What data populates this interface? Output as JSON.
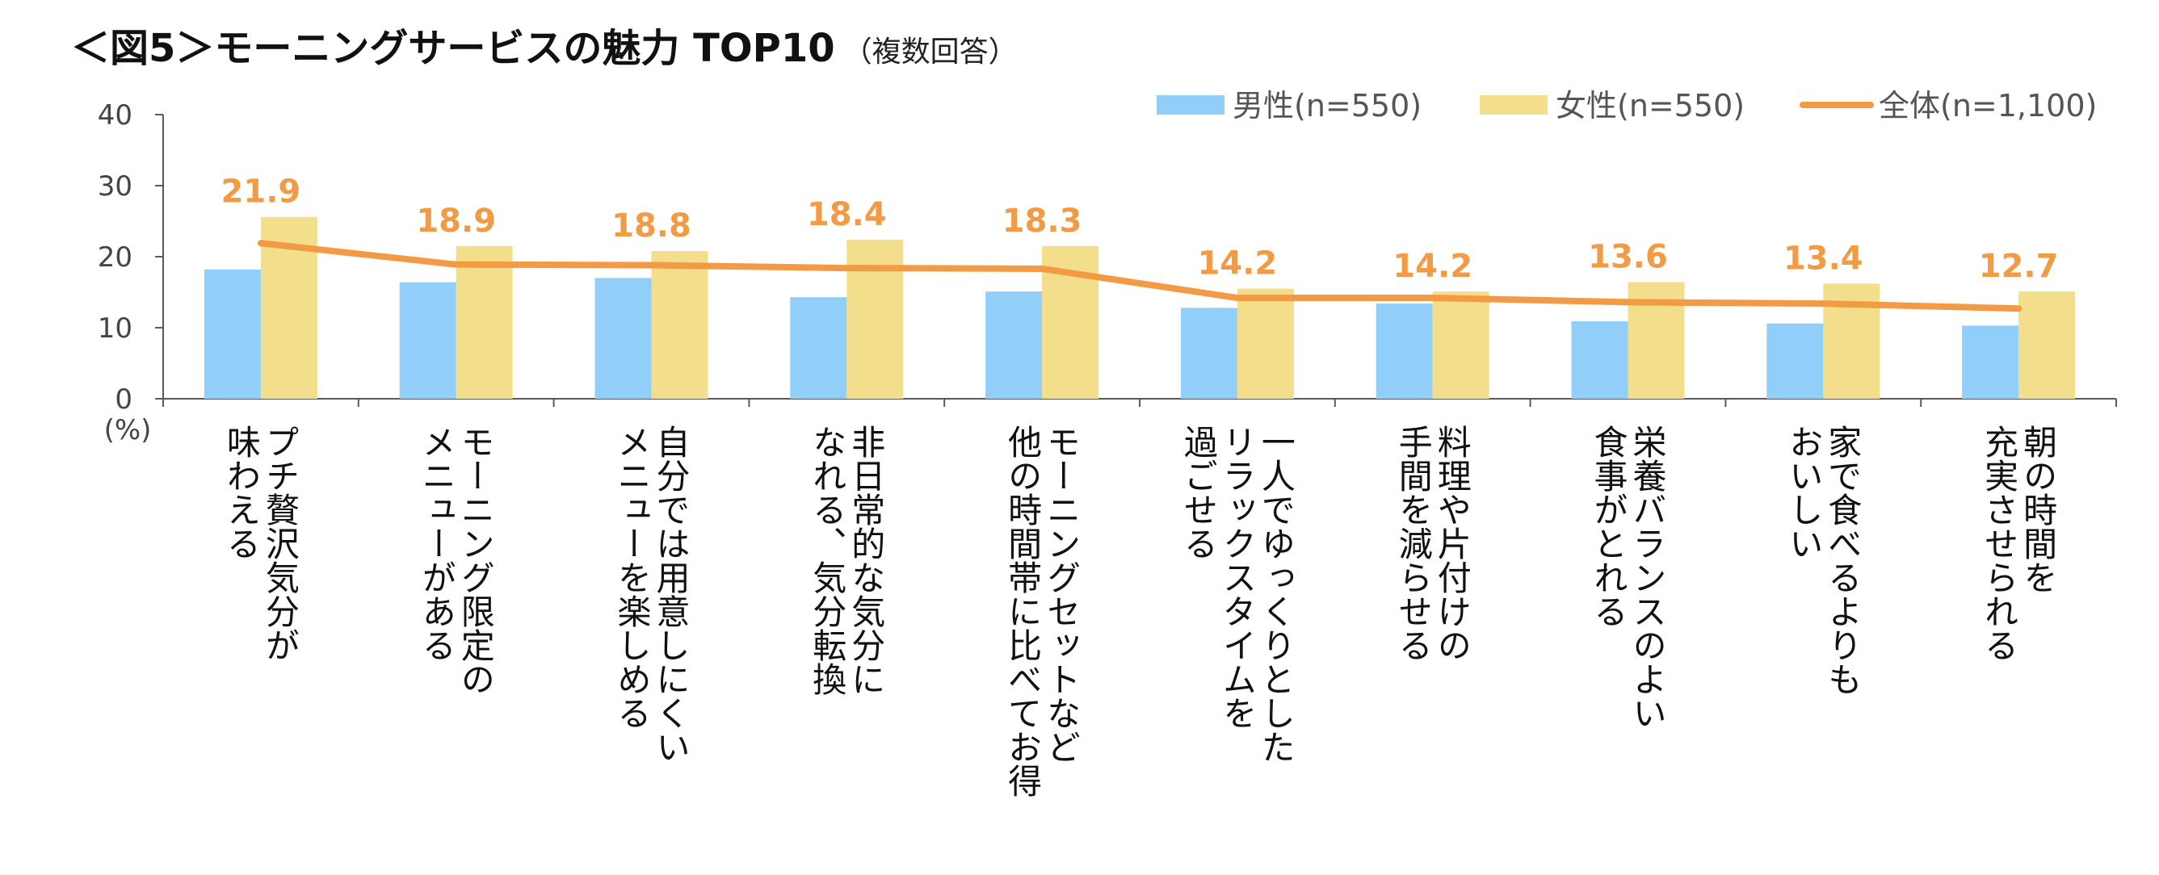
{
  "title": {
    "main": "＜図5＞モーニングサービスの魅力 TOP10",
    "note": "（複数回答）"
  },
  "colors": {
    "male": "#91CFFA",
    "female": "#F2DE8B",
    "total": "#F39A45",
    "axis": "#595959"
  },
  "chart_data": {
    "type": "bar",
    "title": "＜図5＞モーニングサービスの魅力 TOP10",
    "subtitle": "（複数回答）",
    "ylabel": "(%)",
    "ylim": [
      0,
      40
    ],
    "yticks": [
      0,
      10,
      20,
      30,
      40
    ],
    "grid": false,
    "legend_position": "top-right",
    "categories": [
      [
        "プチ贅沢気分が",
        "味わえる"
      ],
      [
        "モーニング限定の",
        "メニューがある"
      ],
      [
        "自分では用意しにくい",
        "メニューを楽しめる"
      ],
      [
        "非日常的な気分に",
        "なれる、気分転換"
      ],
      [
        "モーニングセットなど",
        "他の時間帯に比べてお得"
      ],
      [
        "一人でゆっくりとした",
        "リラックスタイムを",
        "過ごせる"
      ],
      [
        "料理や片付けの",
        "手間を減らせる"
      ],
      [
        "栄養バランスのよい",
        "食事がとれる"
      ],
      [
        "家で食べるよりも",
        "おいしい"
      ],
      [
        "朝の時間を",
        "充実させられる"
      ]
    ],
    "series": [
      {
        "name": "男性(n=550)",
        "type": "bar",
        "values": [
          18.2,
          16.4,
          17.0,
          14.3,
          15.1,
          12.8,
          13.4,
          10.9,
          10.6,
          10.3
        ]
      },
      {
        "name": "女性(n=550)",
        "type": "bar",
        "values": [
          25.6,
          21.5,
          20.8,
          22.4,
          21.5,
          15.5,
          15.1,
          16.4,
          16.2,
          15.1
        ]
      },
      {
        "name": "全体(n=1,100)",
        "type": "line",
        "values": [
          21.9,
          18.9,
          18.8,
          18.4,
          18.3,
          14.2,
          14.2,
          13.6,
          13.4,
          12.7
        ],
        "labels": [
          "21.9",
          "18.9",
          "18.8",
          "18.4",
          "18.3",
          "14.2",
          "14.2",
          "13.6",
          "13.4",
          "12.7"
        ]
      }
    ]
  }
}
